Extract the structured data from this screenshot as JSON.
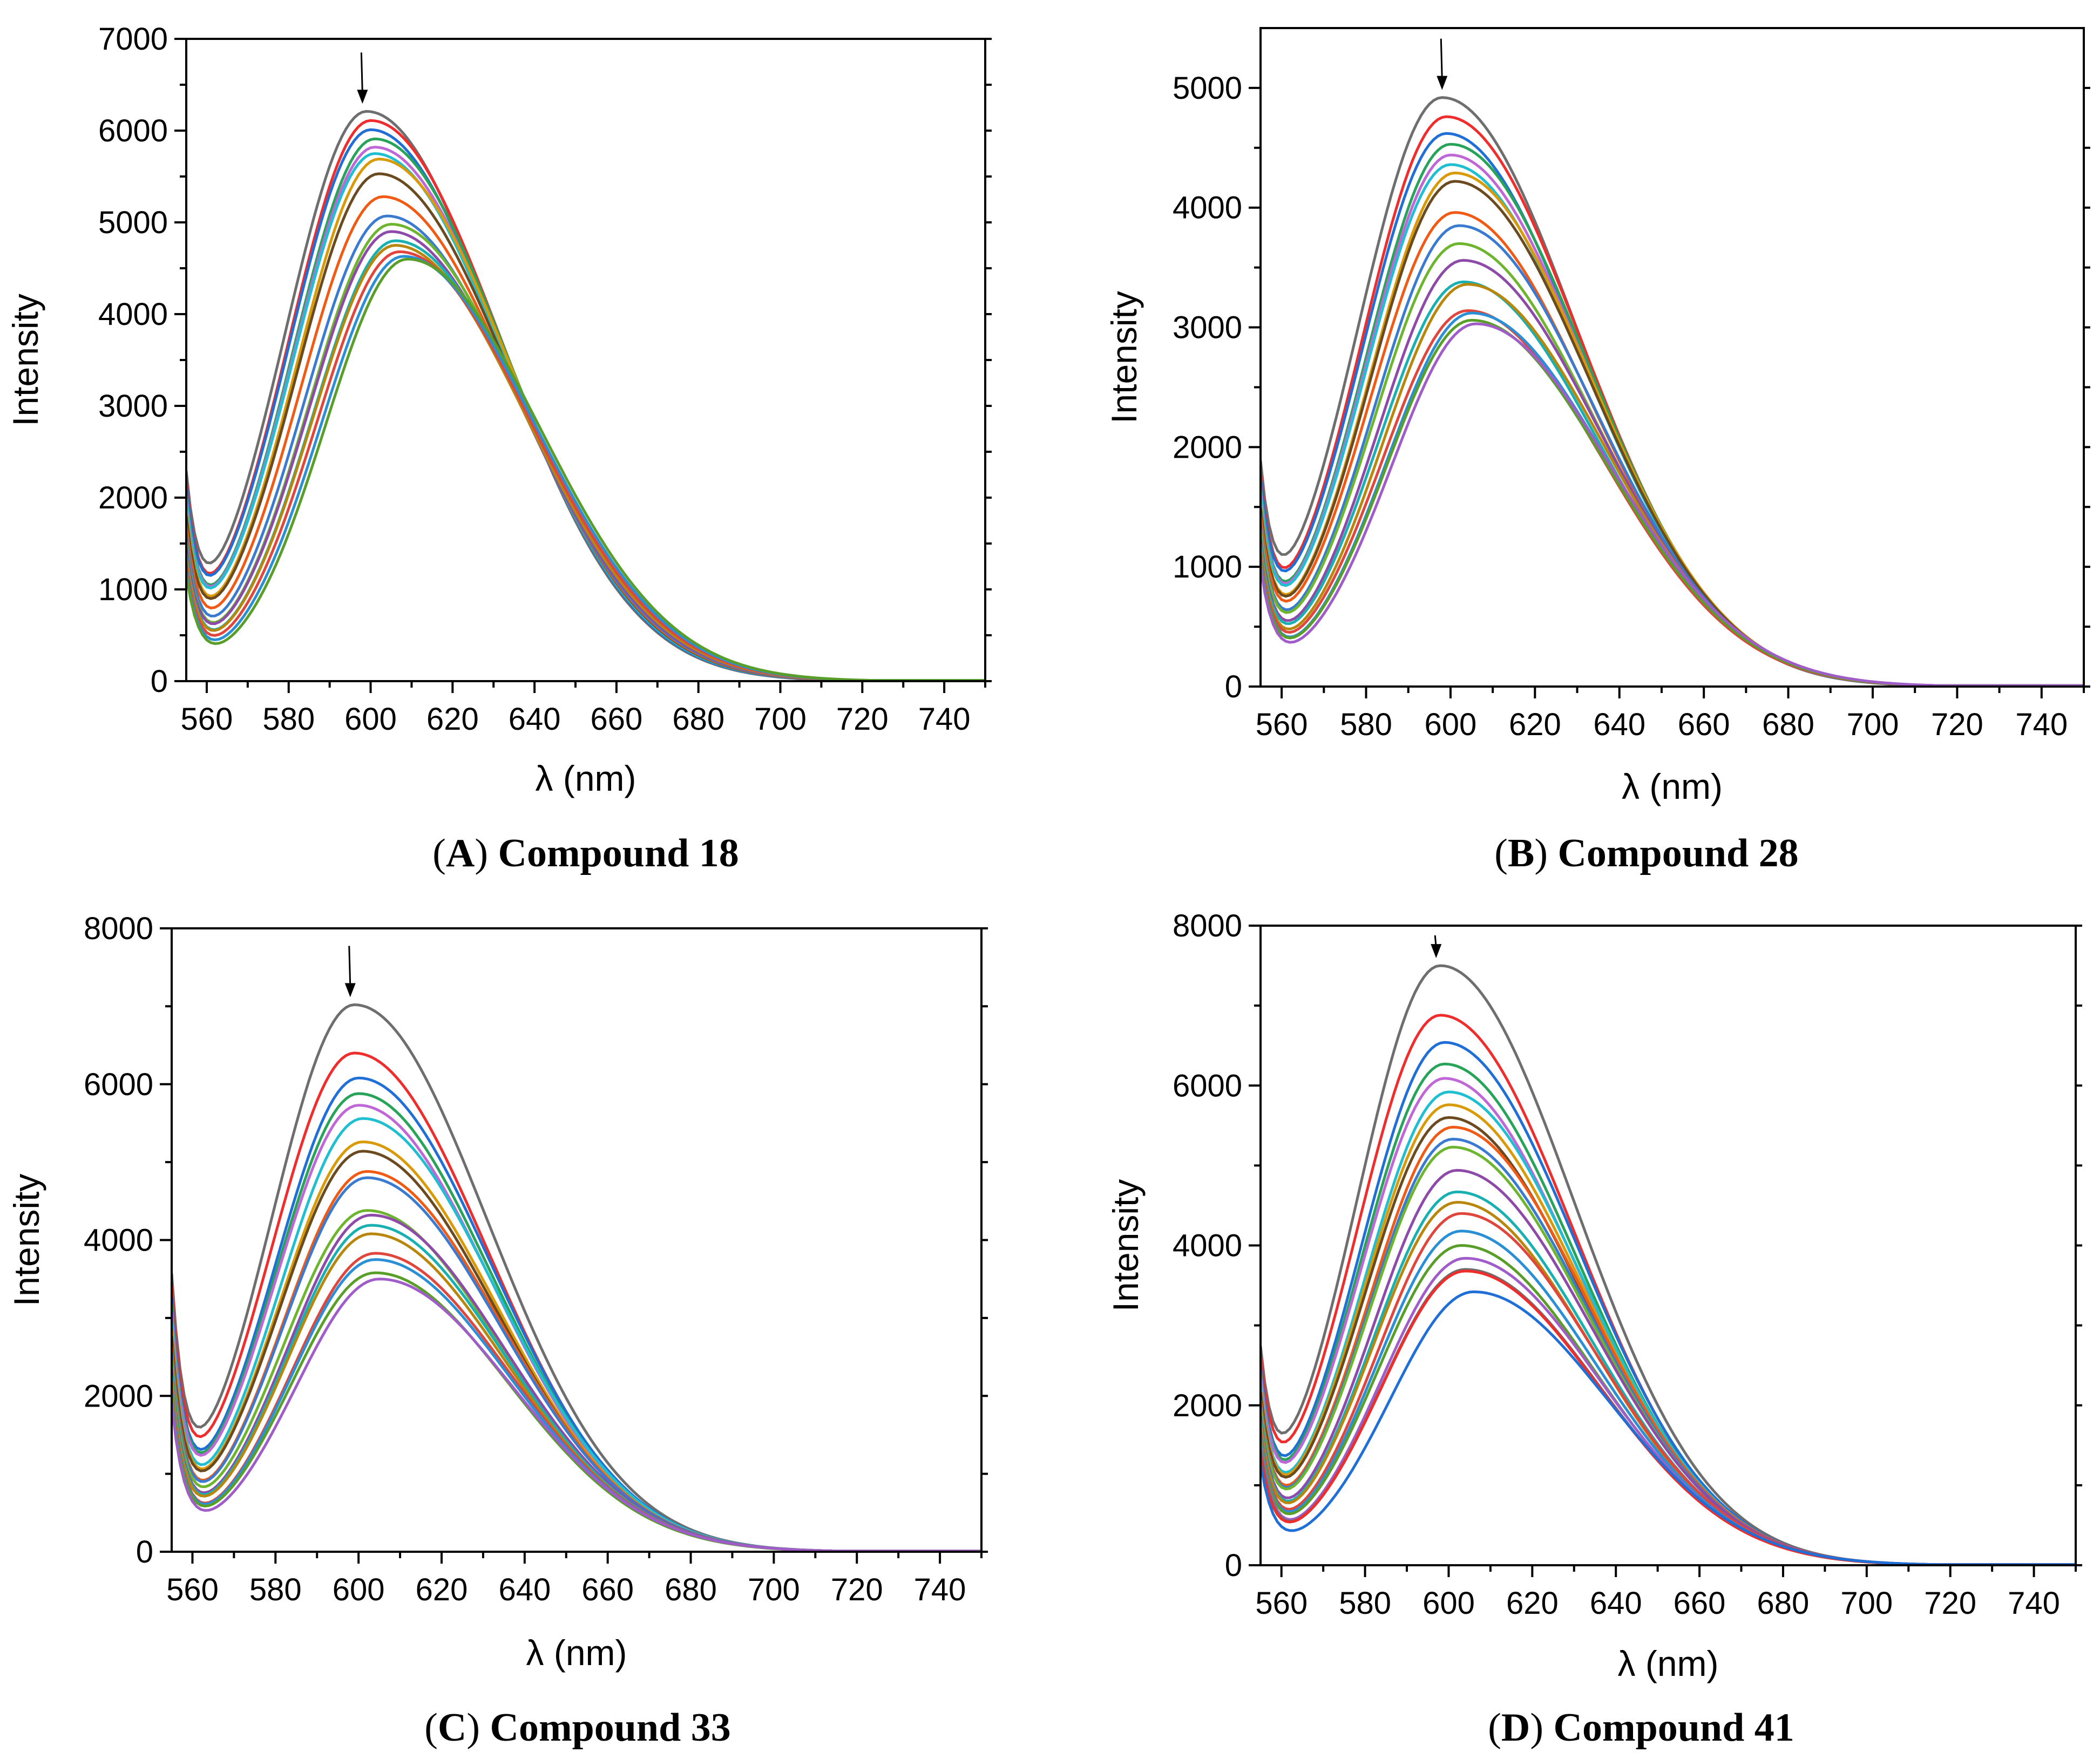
{
  "colors": [
    "#6e6e6e",
    "#ef2d2d",
    "#1f6fd6",
    "#27a35a",
    "#c067d8",
    "#1fbfd1",
    "#d99a08",
    "#6b4a1f",
    "#f05a14",
    "#3a7ad0",
    "#6eb52f",
    "#8e4aa8",
    "#18b0b0",
    "#b8860b",
    "#e0463c",
    "#2b8fd6",
    "#5a9e2a",
    "#a05cc8"
  ],
  "chart_data": [
    {
      "type": "line",
      "panel": "A",
      "caption_letter": "A",
      "caption_text": "Compound 18",
      "xlabel": "λ (nm)",
      "ylabel": "Intensity",
      "xlim": [
        555,
        750
      ],
      "ylim": [
        0,
        7000
      ],
      "xticks": [
        560,
        580,
        600,
        620,
        640,
        660,
        680,
        700,
        720,
        740
      ],
      "yticks": [
        0,
        1000,
        2000,
        3000,
        4000,
        5000,
        6000,
        7000
      ],
      "arrow_x": 598,
      "series": [
        {
          "name": "s1",
          "peak": 6210,
          "center": 599,
          "start": 1740
        },
        {
          "name": "s2",
          "peak": 6110,
          "center": 600,
          "start": 1700
        },
        {
          "name": "s3",
          "peak": 6010,
          "center": 600,
          "start": 1660
        },
        {
          "name": "s4",
          "peak": 5910,
          "center": 601,
          "start": 1620
        },
        {
          "name": "s5",
          "peak": 5820,
          "center": 601,
          "start": 1580
        },
        {
          "name": "s6",
          "peak": 5750,
          "center": 601,
          "start": 1540
        },
        {
          "name": "s7",
          "peak": 5690,
          "center": 602,
          "start": 1500
        },
        {
          "name": "s8",
          "peak": 5530,
          "center": 602,
          "start": 1450
        },
        {
          "name": "s9",
          "peak": 5280,
          "center": 603,
          "start": 1400
        },
        {
          "name": "s10",
          "peak": 5070,
          "center": 604,
          "start": 1350
        },
        {
          "name": "s11",
          "peak": 4980,
          "center": 605,
          "start": 1300
        },
        {
          "name": "s12",
          "peak": 4900,
          "center": 605,
          "start": 1250
        },
        {
          "name": "s13",
          "peak": 4800,
          "center": 606,
          "start": 1200
        },
        {
          "name": "s14",
          "peak": 4750,
          "center": 606,
          "start": 1160
        },
        {
          "name": "s15",
          "peak": 4680,
          "center": 607,
          "start": 1120
        },
        {
          "name": "s16",
          "peak": 4630,
          "center": 608,
          "start": 1080
        },
        {
          "name": "s17",
          "peak": 4600,
          "center": 609,
          "start": 1050
        }
      ]
    },
    {
      "type": "line",
      "panel": "B",
      "caption_letter": "B",
      "caption_text": "Compound 28",
      "xlabel": "λ (nm)",
      "ylabel": "Intensity",
      "xlim": [
        555,
        750
      ],
      "ylim": [
        0,
        5500
      ],
      "xticks": [
        560,
        580,
        600,
        620,
        640,
        660,
        680,
        700,
        720,
        740
      ],
      "yticks": [
        0,
        1000,
        2000,
        3000,
        4000,
        5000
      ],
      "arrow_x": 598,
      "series": [
        {
          "name": "s1",
          "peak": 4920,
          "center": 598,
          "start": 1400
        },
        {
          "name": "s2",
          "peak": 4760,
          "center": 599,
          "start": 1370
        },
        {
          "name": "s3",
          "peak": 4620,
          "center": 599,
          "start": 1340
        },
        {
          "name": "s4",
          "peak": 4530,
          "center": 600,
          "start": 1310
        },
        {
          "name": "s5",
          "peak": 4440,
          "center": 600,
          "start": 1280
        },
        {
          "name": "s6",
          "peak": 4360,
          "center": 600,
          "start": 1250
        },
        {
          "name": "s7",
          "peak": 4290,
          "center": 601,
          "start": 1220
        },
        {
          "name": "s8",
          "peak": 4220,
          "center": 601,
          "start": 1190
        },
        {
          "name": "s9",
          "peak": 3960,
          "center": 601,
          "start": 1150
        },
        {
          "name": "s10",
          "peak": 3850,
          "center": 602,
          "start": 1110
        },
        {
          "name": "s11",
          "peak": 3700,
          "center": 602,
          "start": 1080
        },
        {
          "name": "s12",
          "peak": 3560,
          "center": 603,
          "start": 1040
        },
        {
          "name": "s13",
          "peak": 3380,
          "center": 603,
          "start": 1000
        },
        {
          "name": "s14",
          "peak": 3360,
          "center": 604,
          "start": 980
        },
        {
          "name": "s15",
          "peak": 3140,
          "center": 604,
          "start": 950
        },
        {
          "name": "s16",
          "peak": 3120,
          "center": 605,
          "start": 930
        },
        {
          "name": "s17",
          "peak": 3060,
          "center": 605,
          "start": 910
        },
        {
          "name": "s18",
          "peak": 3030,
          "center": 606,
          "start": 890
        }
      ]
    },
    {
      "type": "line",
      "panel": "C",
      "caption_letter": "C",
      "caption_text": "Compound 33",
      "xlabel": "λ (nm)",
      "ylabel": "Intensity",
      "xlim": [
        555,
        750
      ],
      "ylim": [
        0,
        8000
      ],
      "xticks": [
        560,
        580,
        600,
        620,
        640,
        660,
        680,
        700,
        720,
        740
      ],
      "yticks": [
        0,
        2000,
        4000,
        6000,
        8000
      ],
      "arrow_x": 598,
      "series": [
        {
          "name": "s1",
          "peak": 7020,
          "center": 599,
          "start": 2950
        },
        {
          "name": "s2",
          "peak": 6400,
          "center": 599,
          "start": 2850
        },
        {
          "name": "s3",
          "peak": 6080,
          "center": 600,
          "start": 2780
        },
        {
          "name": "s4",
          "peak": 5880,
          "center": 600,
          "start": 2700
        },
        {
          "name": "s5",
          "peak": 5730,
          "center": 600,
          "start": 2620
        },
        {
          "name": "s6",
          "peak": 5560,
          "center": 601,
          "start": 2550
        },
        {
          "name": "s7",
          "peak": 5260,
          "center": 601,
          "start": 2480
        },
        {
          "name": "s8",
          "peak": 5140,
          "center": 601,
          "start": 2400
        },
        {
          "name": "s9",
          "peak": 4880,
          "center": 602,
          "start": 2320
        },
        {
          "name": "s10",
          "peak": 4800,
          "center": 602,
          "start": 2250
        },
        {
          "name": "s11",
          "peak": 4380,
          "center": 602,
          "start": 2180
        },
        {
          "name": "s12",
          "peak": 4320,
          "center": 603,
          "start": 2100
        },
        {
          "name": "s13",
          "peak": 4190,
          "center": 603,
          "start": 2030
        },
        {
          "name": "s14",
          "peak": 4080,
          "center": 603,
          "start": 1960
        },
        {
          "name": "s15",
          "peak": 3830,
          "center": 604,
          "start": 1900
        },
        {
          "name": "s16",
          "peak": 3750,
          "center": 604,
          "start": 1850
        },
        {
          "name": "s17",
          "peak": 3580,
          "center": 604,
          "start": 1800
        },
        {
          "name": "s18",
          "peak": 3500,
          "center": 605,
          "start": 1750
        }
      ]
    },
    {
      "type": "line",
      "panel": "D",
      "caption_letter": "D",
      "caption_text": "Compound 41",
      "xlabel": "λ (nm)",
      "ylabel": "Intensity",
      "xlim": [
        555,
        750
      ],
      "ylim": [
        0,
        8000
      ],
      "xticks": [
        560,
        580,
        600,
        620,
        640,
        660,
        680,
        700,
        720,
        740
      ],
      "yticks": [
        0,
        2000,
        4000,
        6000,
        8000
      ],
      "arrow_x": 597,
      "series": [
        {
          "name": "s1",
          "peak": 7500,
          "center": 598,
          "start": 2000
        },
        {
          "name": "s2",
          "peak": 6880,
          "center": 598,
          "start": 1960
        },
        {
          "name": "s3",
          "peak": 6540,
          "center": 599,
          "start": 1920
        },
        {
          "name": "s4",
          "peak": 6270,
          "center": 599,
          "start": 1880
        },
        {
          "name": "s5",
          "peak": 6090,
          "center": 599,
          "start": 1840
        },
        {
          "name": "s6",
          "peak": 5920,
          "center": 600,
          "start": 1800
        },
        {
          "name": "s7",
          "peak": 5760,
          "center": 600,
          "start": 1760
        },
        {
          "name": "s8",
          "peak": 5600,
          "center": 600,
          "start": 1720
        },
        {
          "name": "s9",
          "peak": 5480,
          "center": 601,
          "start": 1680
        },
        {
          "name": "s10",
          "peak": 5330,
          "center": 601,
          "start": 1640
        },
        {
          "name": "s11",
          "peak": 5230,
          "center": 601,
          "start": 1600
        },
        {
          "name": "s12",
          "peak": 4940,
          "center": 602,
          "start": 1560
        },
        {
          "name": "s13",
          "peak": 4670,
          "center": 602,
          "start": 1520
        },
        {
          "name": "s14",
          "peak": 4540,
          "center": 602,
          "start": 1480
        },
        {
          "name": "s15",
          "peak": 4400,
          "center": 603,
          "start": 1440
        },
        {
          "name": "s16",
          "peak": 4180,
          "center": 603,
          "start": 1400
        },
        {
          "name": "s17",
          "peak": 4000,
          "center": 603,
          "start": 1360
        },
        {
          "name": "s18",
          "peak": 3840,
          "center": 604,
          "start": 1320
        },
        {
          "name": "s19",
          "peak": 3700,
          "center": 604,
          "start": 1260
        },
        {
          "name": "s20",
          "peak": 3680,
          "center": 604,
          "start": 1200
        },
        {
          "name": "s21",
          "peak": 3420,
          "center": 606,
          "start": 1150
        }
      ]
    }
  ]
}
